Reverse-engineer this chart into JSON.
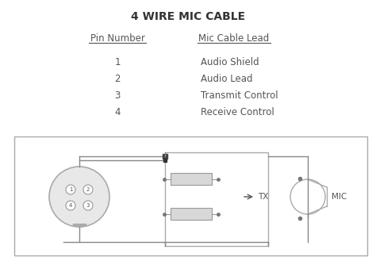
{
  "title": "4 WIRE MIC CABLE",
  "col1_header": "Pin Number",
  "col2_header": "Mic Cable Lead",
  "pins": [
    "1",
    "2",
    "3",
    "4"
  ],
  "leads": [
    "Audio Shield",
    "Audio Lead",
    "Transmit Control",
    "Receive Control"
  ],
  "text_color": "#555555",
  "line_color": "#999999",
  "fig_w": 4.74,
  "fig_h": 3.34,
  "dpi": 100
}
